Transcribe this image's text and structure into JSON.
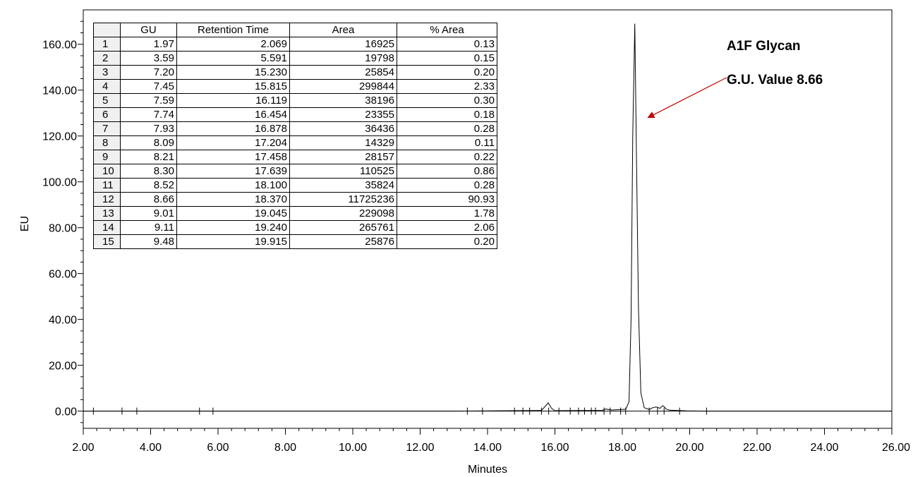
{
  "chart_data": {
    "type": "line",
    "xlabel": "Minutes",
    "ylabel": "EU",
    "xlim": [
      2.0,
      26.0
    ],
    "ylim": [
      -7.5,
      175
    ],
    "x_ticks": [
      "2.00",
      "4.00",
      "6.00",
      "8.00",
      "10.00",
      "12.00",
      "14.00",
      "16.00",
      "18.00",
      "20.00",
      "22.00",
      "24.00",
      "26.00"
    ],
    "y_ticks": [
      "0.00",
      "20.00",
      "40.00",
      "60.00",
      "80.00",
      "100.00",
      "120.00",
      "140.00",
      "160.00"
    ],
    "series": [
      {
        "x": [
          2.0,
          13.0,
          15.6,
          15.72,
          15.8,
          15.9,
          16.0,
          17.0,
          17.4,
          17.5,
          17.7,
          18.1,
          18.2,
          18.26,
          18.31,
          18.37,
          18.42,
          18.48,
          18.55,
          18.65,
          18.8,
          18.9,
          19.0,
          19.05,
          19.12,
          19.2,
          19.25,
          19.3,
          19.4,
          19.9,
          20.5,
          26.0
        ],
        "y": [
          0,
          0,
          0.3,
          2.2,
          3.6,
          1.2,
          0.2,
          0.3,
          0.3,
          0.9,
          0.5,
          0.8,
          4,
          40,
          120,
          169,
          110,
          45,
          8,
          1.5,
          0.7,
          1.5,
          1.8,
          1.6,
          1.2,
          2.4,
          1.8,
          0.9,
          0.4,
          0.1,
          0,
          0
        ]
      }
    ],
    "baseline_marks_x": [
      2.3,
      3.15,
      3.59,
      5.45,
      5.85,
      13.4,
      13.85,
      14.8,
      15.05,
      15.25,
      15.6,
      15.815,
      16.119,
      16.454,
      16.7,
      16.878,
      17.08,
      17.204,
      17.458,
      17.639,
      17.95,
      18.1,
      18.8,
      19.045,
      19.24,
      19.7,
      20.5
    ],
    "annotations": [
      {
        "text": "A1F Glycan",
        "x": 23.4,
        "y": 159
      },
      {
        "text": "G.U. Value 8.66",
        "x": 23.4,
        "y": 143.5
      },
      {
        "text": "",
        "arrow_from": [
          21.1,
          145.5
        ],
        "arrow_to": [
          18.76,
          128
        ]
      }
    ],
    "table": {
      "columns": [
        "",
        "GU",
        "Retention Time",
        "Area",
        "% Area"
      ],
      "rows": [
        [
          "1",
          "1.97",
          "2.069",
          "16925",
          "0.13"
        ],
        [
          "2",
          "3.59",
          "5.591",
          "19798",
          "0.15"
        ],
        [
          "3",
          "7.20",
          "15.230",
          "25854",
          "0.20"
        ],
        [
          "4",
          "7.45",
          "15.815",
          "299844",
          "2.33"
        ],
        [
          "5",
          "7.59",
          "16.119",
          "38196",
          "0.30"
        ],
        [
          "6",
          "7.74",
          "16.454",
          "23355",
          "0.18"
        ],
        [
          "7",
          "7.93",
          "16.878",
          "36436",
          "0.28"
        ],
        [
          "8",
          "8.09",
          "17.204",
          "14329",
          "0.11"
        ],
        [
          "9",
          "8.21",
          "17.458",
          "28157",
          "0.22"
        ],
        [
          "10",
          "8.30",
          "17.639",
          "110525",
          "0.86"
        ],
        [
          "11",
          "8.52",
          "18.100",
          "35824",
          "0.28"
        ],
        [
          "12",
          "8.66",
          "18.370",
          "11725236",
          "90.93"
        ],
        [
          "13",
          "9.01",
          "19.045",
          "229098",
          "1.78"
        ],
        [
          "14",
          "9.11",
          "19.240",
          "265761",
          "2.06"
        ],
        [
          "15",
          "9.48",
          "19.915",
          "25876",
          "0.20"
        ]
      ]
    },
    "colors": {
      "trace": "#000000",
      "arrow": "#c00000"
    },
    "grid": false
  }
}
